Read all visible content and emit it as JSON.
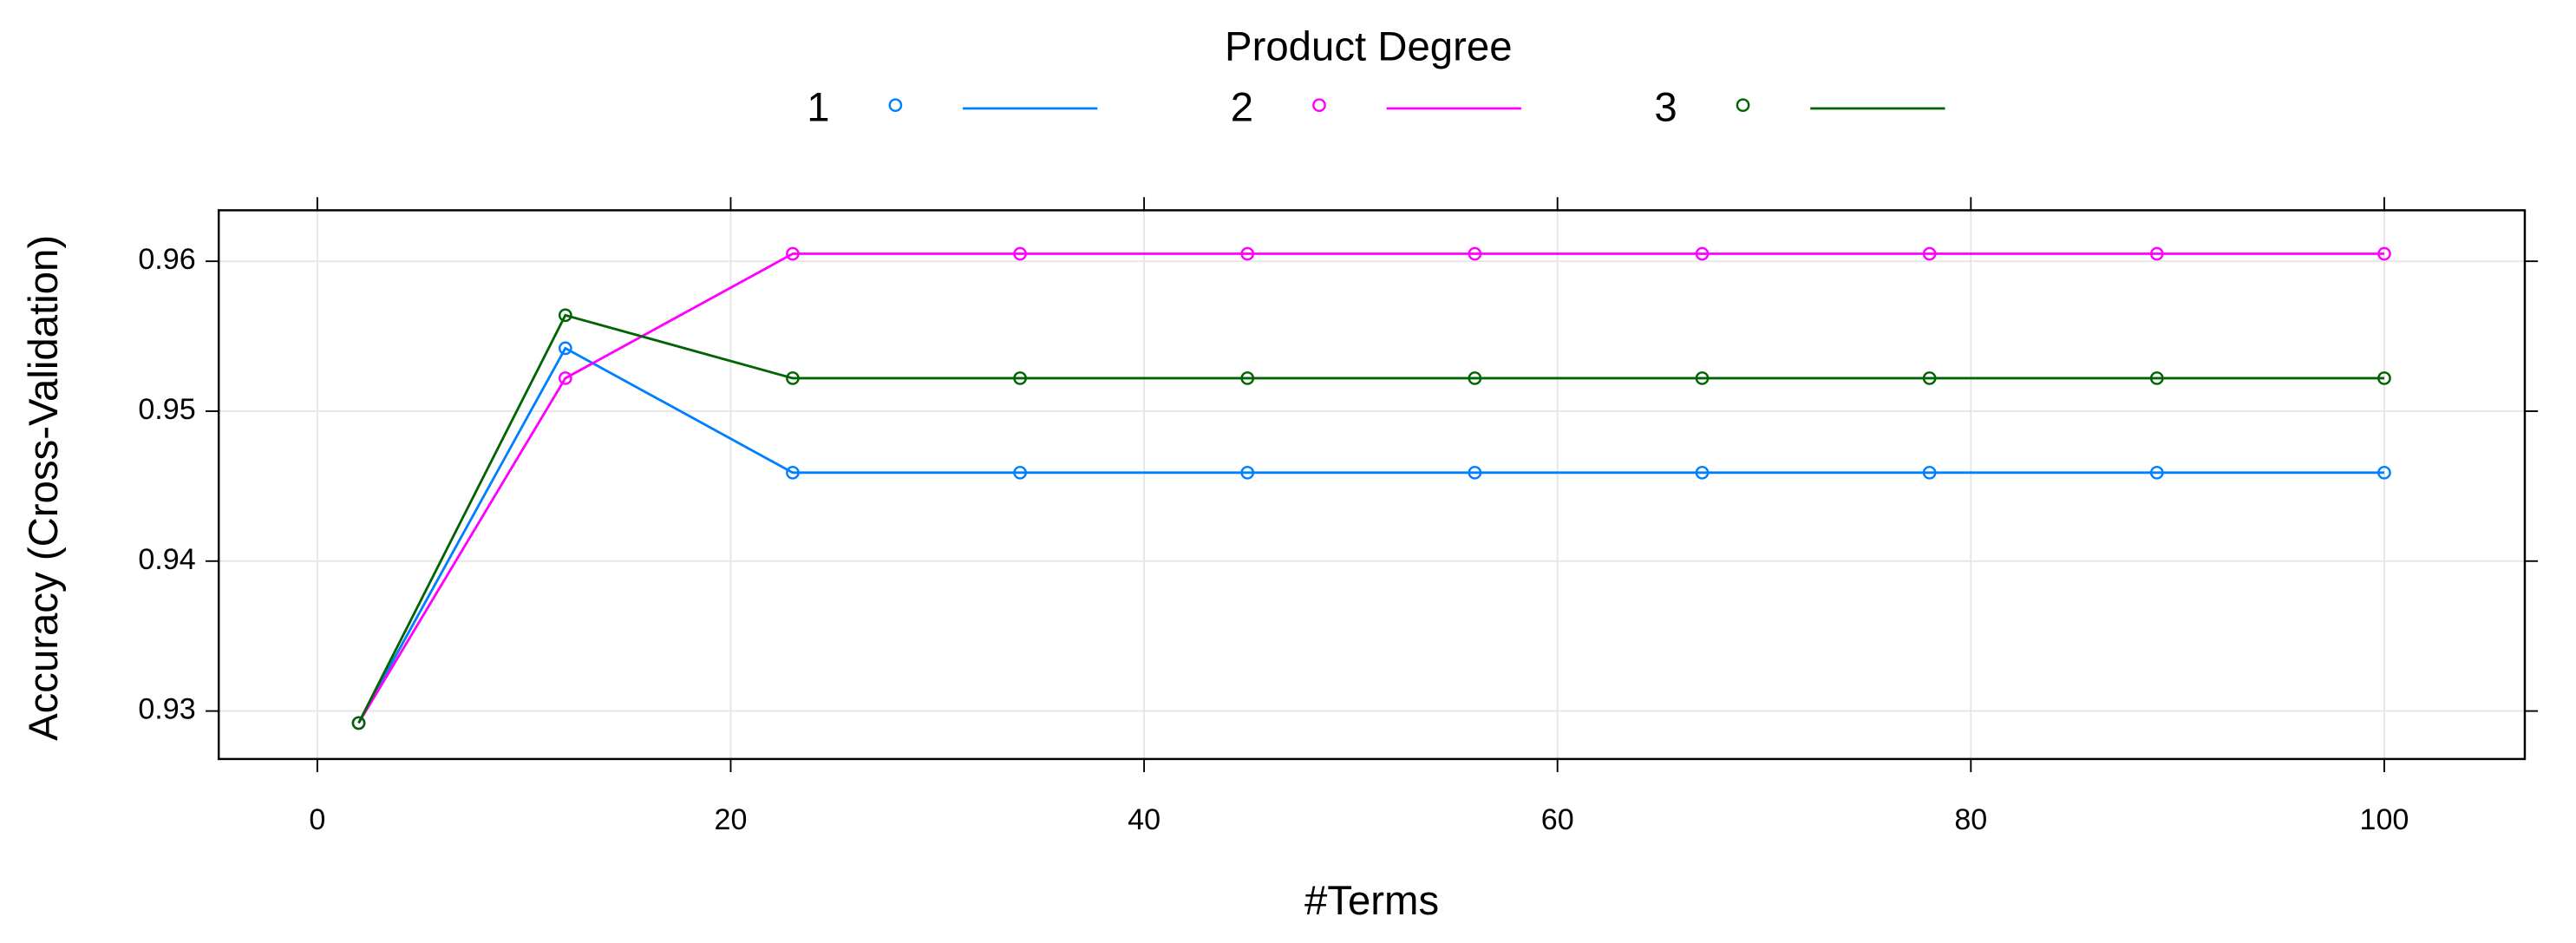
{
  "chart_data": {
    "type": "line",
    "legend_title": "Product Degree",
    "x_label": "#Terms",
    "y_label": "Accuracy (Cross-Validation)",
    "x": [
      2,
      12,
      23,
      34,
      45,
      56,
      67,
      78,
      89,
      100
    ],
    "series": [
      {
        "name": "1",
        "color": "#0080ff",
        "values": [
          0.9292,
          0.9542,
          0.9459,
          0.9459,
          0.9459,
          0.9459,
          0.9459,
          0.9459,
          0.9459,
          0.9459
        ]
      },
      {
        "name": "2",
        "color": "#ff00ff",
        "values": [
          0.9292,
          0.9522,
          0.9605,
          0.9605,
          0.9605,
          0.9605,
          0.9605,
          0.9605,
          0.9605,
          0.9605
        ]
      },
      {
        "name": "3",
        "color": "#006400",
        "values": [
          0.9292,
          0.9564,
          0.9522,
          0.9522,
          0.9522,
          0.9522,
          0.9522,
          0.9522,
          0.9522,
          0.9522
        ]
      }
    ],
    "xlim": [
      -4.77,
      106.8
    ],
    "ylim": [
      0.9268,
      0.9634
    ],
    "xticks": [
      0,
      20,
      40,
      60,
      80,
      100
    ],
    "yticks": [
      0.93,
      0.94,
      0.95,
      0.96
    ],
    "grid": true,
    "legend_position": "top"
  }
}
